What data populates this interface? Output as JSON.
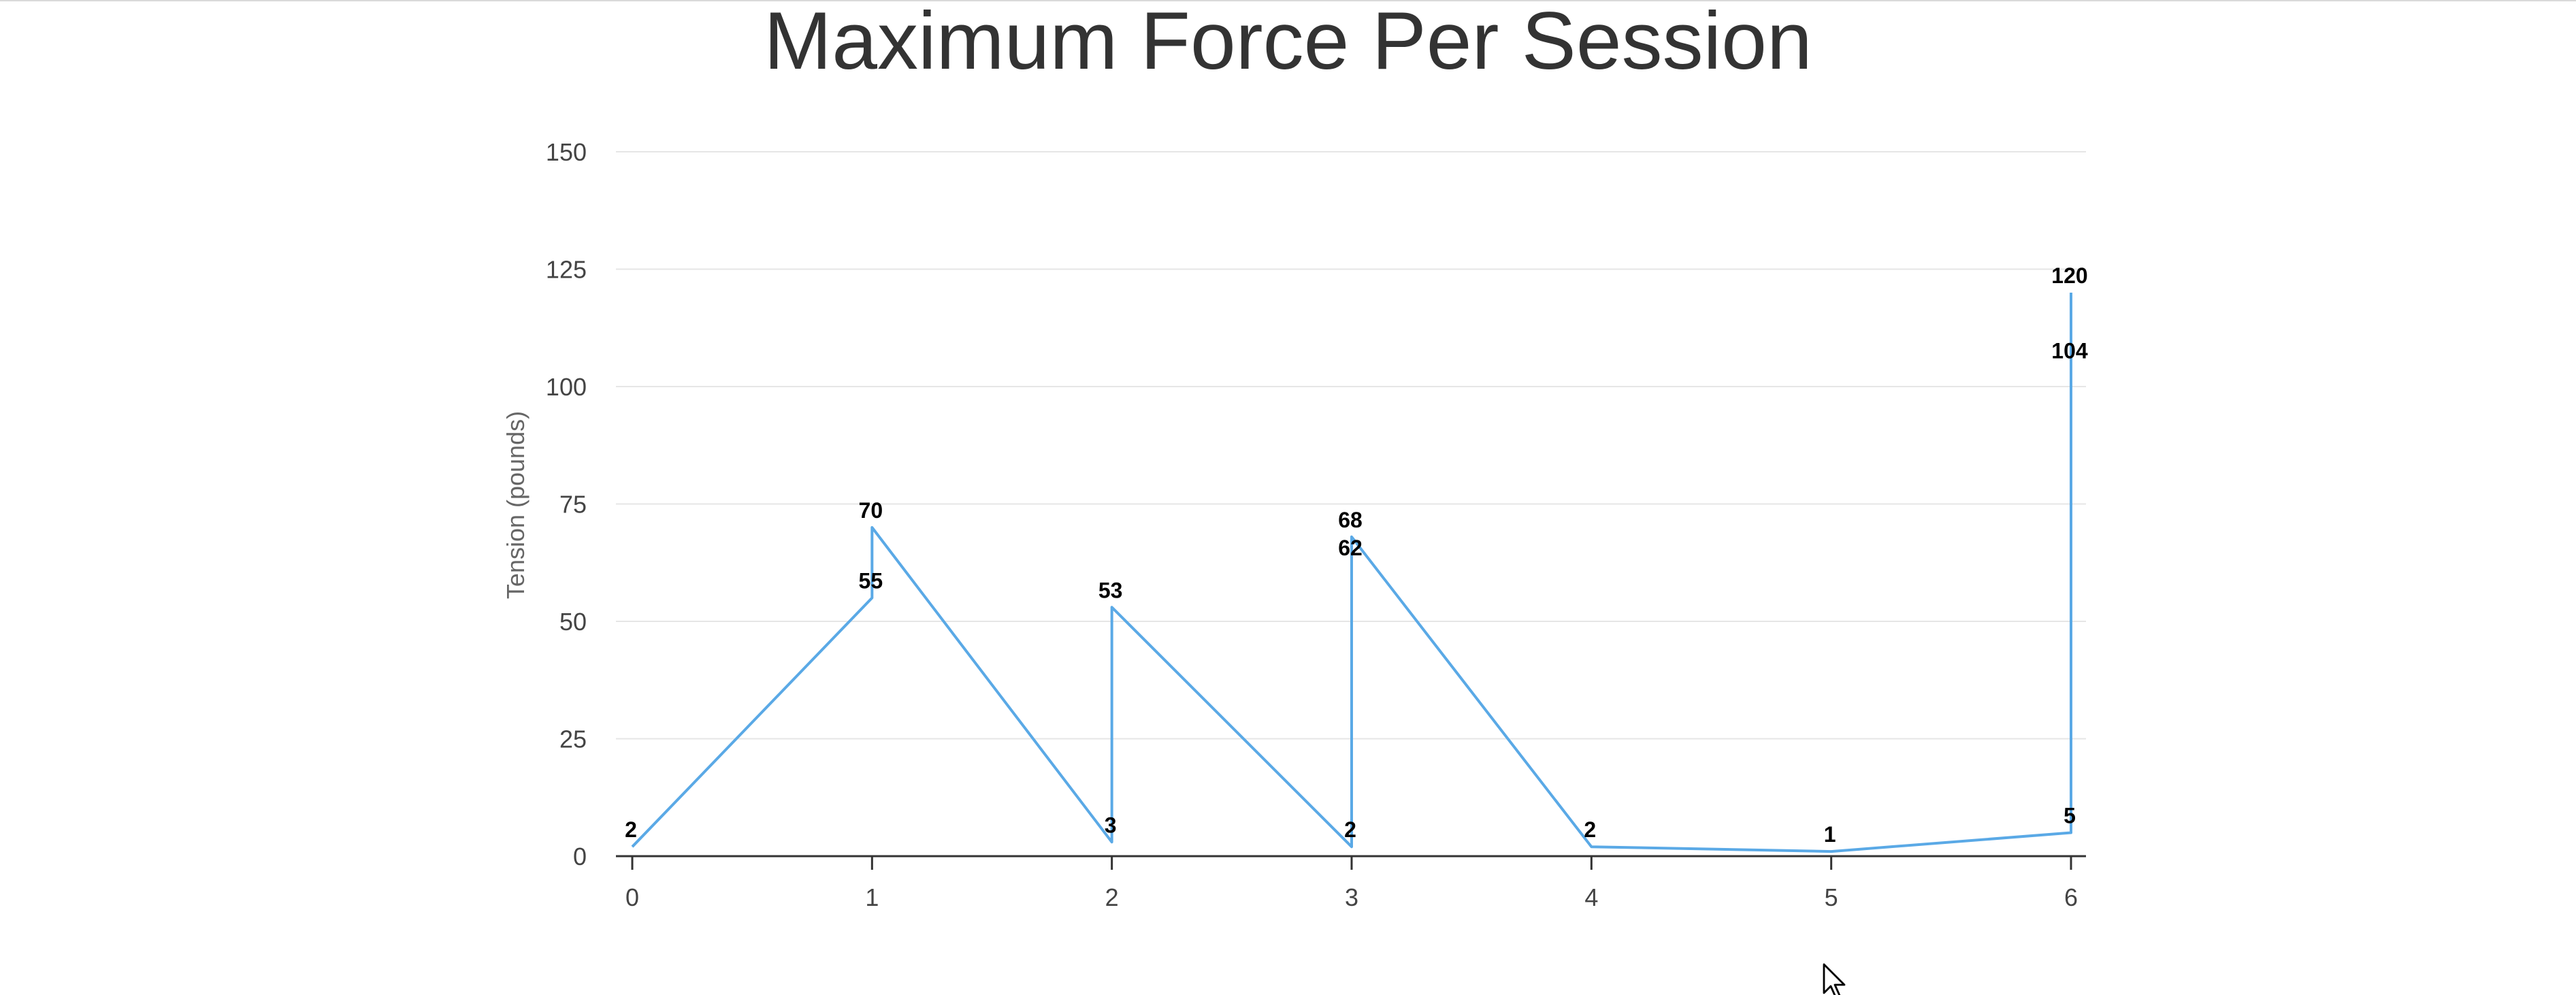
{
  "chart_data": {
    "type": "line",
    "title": "Maximum Force Per Session",
    "ylabel": "Tension (pounds)",
    "xlabel": "",
    "xlim": [
      0,
      6
    ],
    "ylim": [
      0,
      150
    ],
    "xticks": [
      0,
      1,
      2,
      3,
      4,
      5,
      6
    ],
    "yticks": [
      0,
      25,
      50,
      75,
      100,
      125,
      150
    ],
    "grid": true,
    "legend": "none",
    "series": [
      {
        "color": "#5aa9e6",
        "points": [
          {
            "x": 0,
            "y": 2
          },
          {
            "x": 1,
            "y": 55
          },
          {
            "x": 1,
            "y": 70
          },
          {
            "x": 2,
            "y": 3
          },
          {
            "x": 2,
            "y": 53
          },
          {
            "x": 3,
            "y": 2
          },
          {
            "x": 3,
            "y": 62
          },
          {
            "x": 3,
            "y": 68
          },
          {
            "x": 4,
            "y": 2
          },
          {
            "x": 5,
            "y": 1
          },
          {
            "x": 6,
            "y": 5
          },
          {
            "x": 6,
            "y": 104
          },
          {
            "x": 6,
            "y": 120
          }
        ]
      }
    ]
  },
  "cursor_icon": "mouse-pointer-icon"
}
